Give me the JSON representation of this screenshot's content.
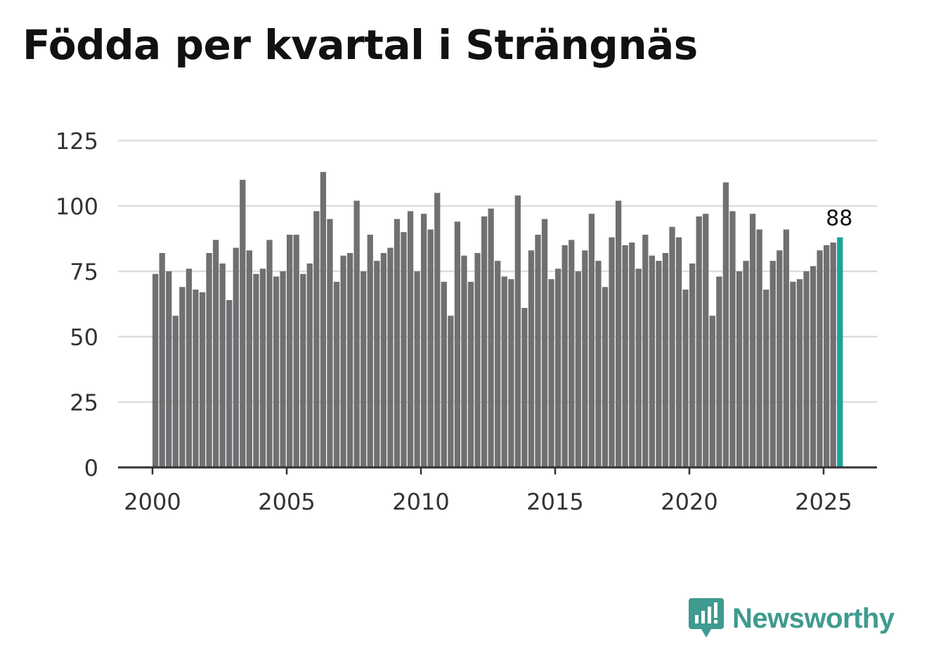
{
  "title": "Födda per kvartal i Strängnäs",
  "brand": {
    "name": "Newsworthy",
    "logo_icon": "newsworthy-logo-icon",
    "color": "#3f9a8f"
  },
  "colors": {
    "bar": "#707073",
    "highlight": "#1aa497",
    "grid": "#dddddd",
    "axis": "#333333",
    "text": "#333333"
  },
  "chart_data": {
    "type": "bar",
    "title": "Födda per kvartal i Strängnäs",
    "xlabel": "",
    "ylabel": "",
    "ylim": [
      0,
      125
    ],
    "yticks": [
      0,
      25,
      50,
      75,
      100,
      125
    ],
    "xticks": [
      "2000",
      "2005",
      "2010",
      "2015",
      "2020",
      "2025"
    ],
    "first_period": "2000-Q1",
    "frequency": "quarterly",
    "values": [
      74,
      82,
      75,
      58,
      69,
      76,
      68,
      67,
      82,
      87,
      78,
      64,
      84,
      110,
      83,
      74,
      76,
      87,
      73,
      75,
      89,
      89,
      74,
      78,
      98,
      113,
      95,
      71,
      81,
      82,
      102,
      75,
      89,
      79,
      82,
      84,
      95,
      90,
      98,
      75,
      97,
      91,
      105,
      71,
      58,
      94,
      81,
      71,
      82,
      96,
      99,
      79,
      73,
      72,
      104,
      61,
      83,
      89,
      95,
      72,
      76,
      85,
      87,
      75,
      83,
      97,
      79,
      69,
      88,
      102,
      85,
      86,
      76,
      89,
      81,
      79,
      82,
      92,
      88,
      68,
      78,
      96,
      97,
      58,
      73,
      109,
      98,
      75,
      79,
      97,
      91,
      68,
      79,
      83,
      91,
      71,
      72,
      75,
      77,
      83,
      85,
      86,
      88
    ],
    "highlight_label": "88",
    "grid": true,
    "legend": "none"
  }
}
